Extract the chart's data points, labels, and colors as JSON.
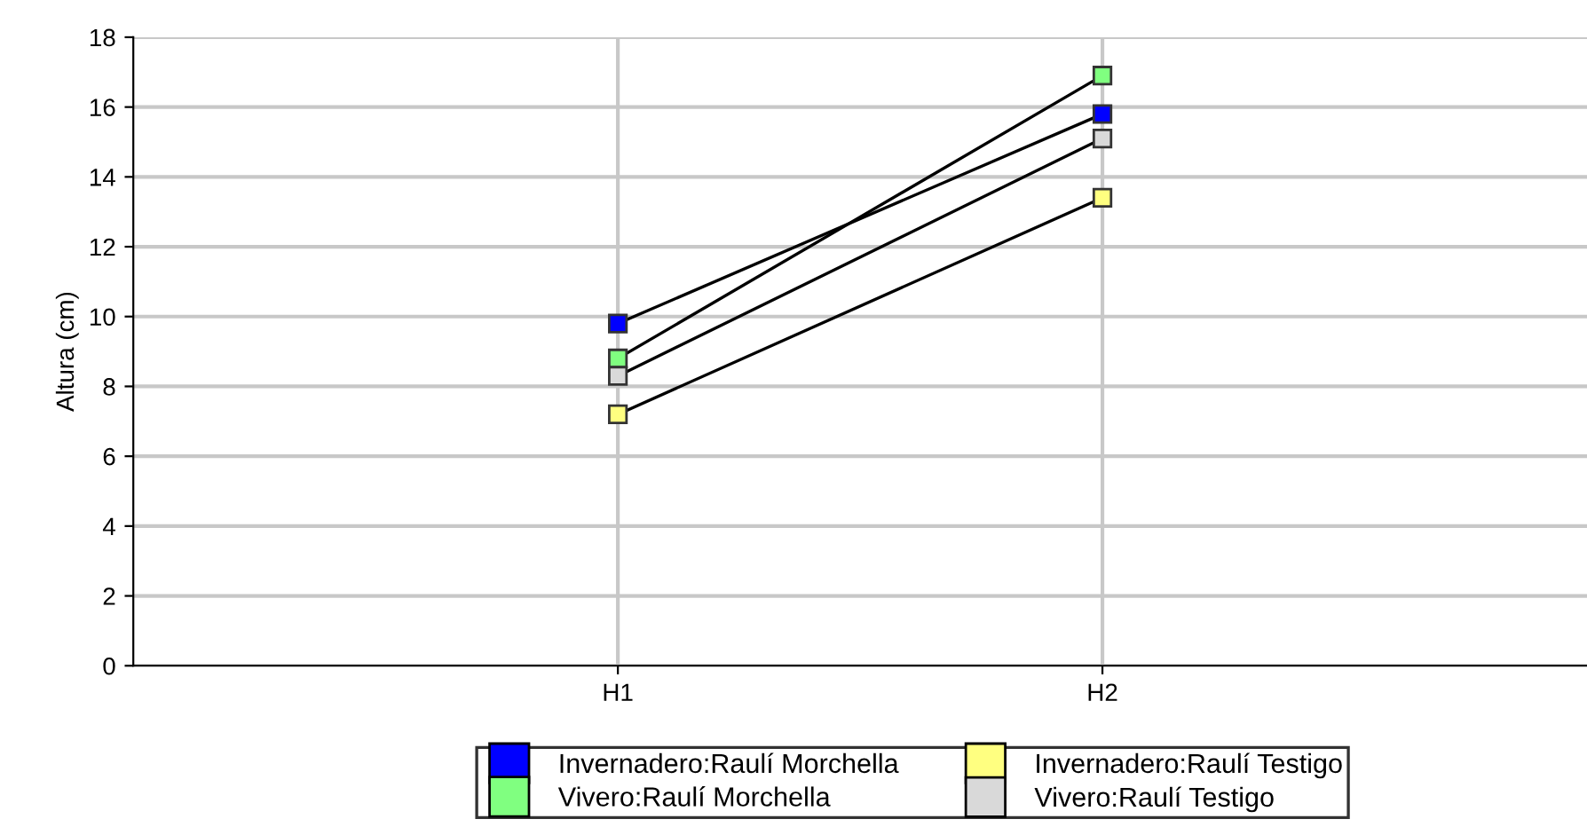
{
  "chart_data": {
    "type": "line",
    "ylabel": "Altura (cm)",
    "categories": [
      "H1",
      "H2"
    ],
    "series": [
      {
        "name": "Invernadero:Raulí Morchella",
        "color": "#0000ff",
        "values": [
          9.8,
          15.8
        ]
      },
      {
        "name": "Vivero:Raulí Morchella",
        "color": "#80ff80",
        "values": [
          8.8,
          16.9
        ]
      },
      {
        "name": "Invernadero:Raulí Testigo",
        "color": "#ffff80",
        "values": [
          7.2,
          13.4
        ]
      },
      {
        "name": "Vivero:Raulí Testigo",
        "color": "#d9d9d9",
        "values": [
          8.3,
          15.1
        ]
      }
    ],
    "ylim": [
      0,
      18
    ],
    "yticks": [
      0,
      2,
      4,
      6,
      8,
      10,
      12,
      14,
      16,
      18
    ],
    "grid": true,
    "legend": "bottom",
    "marker": "square",
    "line_style": "solid"
  }
}
